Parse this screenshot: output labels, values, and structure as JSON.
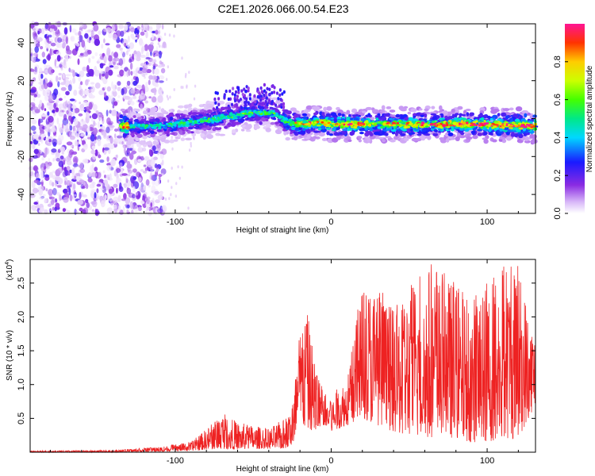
{
  "chart_data": [
    {
      "type": "heatmap",
      "title": "C2E1.2026.066.00.54.E23",
      "xlabel": "Height of straight line (km)",
      "ylabel": "Frequency (Hz)",
      "xlim": [
        -193,
        131
      ],
      "ylim": [
        -50,
        50
      ],
      "x_ticks": [
        -100,
        0,
        100
      ],
      "y_ticks": [
        -40,
        -20,
        0,
        20,
        40
      ],
      "colorbar": {
        "label": "Normalized spectral amplitude",
        "range": [
          0,
          1
        ],
        "ticks": [
          "0.0",
          "0.2",
          "0.4",
          "0.6",
          "0.8"
        ],
        "tick_values": [
          0.0,
          0.2,
          0.4,
          0.6,
          0.8
        ]
      },
      "ridge_center_hz": [
        [
          -193,
          null
        ],
        [
          -130,
          -4
        ],
        [
          -115,
          -4
        ],
        [
          -100,
          -3
        ],
        [
          -80,
          -1
        ],
        [
          -65,
          1
        ],
        [
          -50,
          3
        ],
        [
          -40,
          3
        ],
        [
          -35,
          2
        ],
        [
          -28,
          -2
        ],
        [
          -20,
          -3
        ],
        [
          -10,
          -2
        ],
        [
          0,
          -3
        ],
        [
          20,
          -3
        ],
        [
          40,
          -3
        ],
        [
          60,
          -3
        ],
        [
          80,
          -3
        ],
        [
          100,
          -3
        ],
        [
          131,
          -4
        ]
      ],
      "ridge_peak_amplitude": [
        [
          -130,
          0.45
        ],
        [
          -100,
          0.5
        ],
        [
          -70,
          0.5
        ],
        [
          -50,
          0.55
        ],
        [
          -35,
          0.5
        ],
        [
          -20,
          0.75
        ],
        [
          0,
          0.85
        ],
        [
          40,
          0.8
        ],
        [
          80,
          0.85
        ],
        [
          131,
          0.9
        ]
      ],
      "noise_region_km": [
        -193,
        -115
      ]
    },
    {
      "type": "line",
      "xlabel": "Height of straight line (km)",
      "ylabel": "SNR (10 * v/v)",
      "scale_label": "(x10",
      "scale_exp": "4",
      "scale_close": ")",
      "xlim": [
        -193,
        131
      ],
      "ylim": [
        0,
        2.85
      ],
      "x_ticks": [
        -100,
        0,
        100
      ],
      "y_ticks": [
        "0.5",
        "1.0",
        "1.5",
        "2.0",
        "2.5"
      ],
      "y_tick_values": [
        0.5,
        1.0,
        1.5,
        2.0,
        2.5
      ],
      "series": [
        {
          "name": "SNR",
          "color": "#ee2222",
          "envelope_km": [
            -193,
            -140,
            -110,
            -90,
            -80,
            -70,
            -60,
            -50,
            -40,
            -30,
            -25,
            -20,
            -15,
            -10,
            -5,
            0,
            5,
            10,
            20,
            30,
            40,
            50,
            60,
            70,
            80,
            90,
            100,
            110,
            120,
            131
          ],
          "envelope_peak": [
            0.02,
            0.03,
            0.08,
            0.15,
            0.35,
            0.6,
            0.45,
            0.4,
            0.35,
            0.5,
            0.7,
            1.9,
            2.05,
            1.3,
            0.9,
            0.8,
            1.0,
            1.1,
            2.55,
            2.5,
            2.1,
            2.5,
            2.85,
            2.7,
            2.5,
            2.3,
            2.6,
            2.85,
            2.8,
            1.75
          ],
          "envelope_floor": [
            0.0,
            0.0,
            0.01,
            0.02,
            0.04,
            0.05,
            0.04,
            0.05,
            0.05,
            0.05,
            0.1,
            0.4,
            0.35,
            0.3,
            0.4,
            0.3,
            0.35,
            0.4,
            0.5,
            0.4,
            0.3,
            0.25,
            0.2,
            0.25,
            0.2,
            0.15,
            0.15,
            0.2,
            0.2,
            0.7
          ]
        }
      ]
    }
  ],
  "colors": {
    "axis": "#000000",
    "line": "#ee2222",
    "noise": "#8a2be2"
  }
}
